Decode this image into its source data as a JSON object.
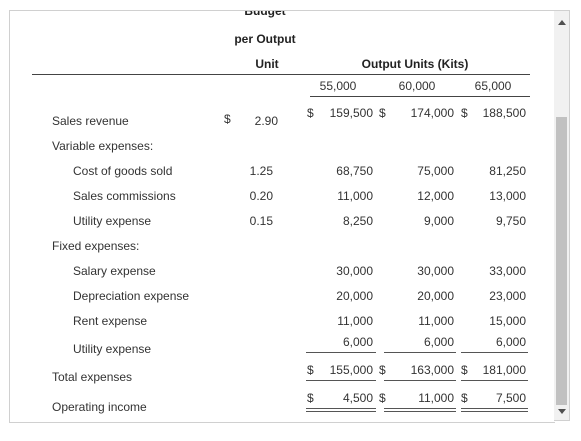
{
  "header": {
    "top_fragment": "Budget",
    "per_output": "per Output",
    "unit": "Unit",
    "output_units": "Output Units (Kits)",
    "units": [
      "55,000",
      "60,000",
      "65,000"
    ]
  },
  "rows": {
    "sales_revenue": {
      "label": "Sales revenue",
      "dollar_unit": "$",
      "unit": "2.90",
      "dollar1": "$",
      "v1": "159,500",
      "dollar2": "$",
      "v2": "174,000",
      "dollar3": "$",
      "v3": "188,500"
    },
    "variable_expenses": {
      "label": "Variable expenses:"
    },
    "cost_of_goods_sold": {
      "label": "Cost of goods sold",
      "unit": "1.25",
      "v1": "68,750",
      "v2": "75,000",
      "v3": "81,250"
    },
    "sales_commissions": {
      "label": "Sales commissions",
      "unit": "0.20",
      "v1": "11,000",
      "v2": "12,000",
      "v3": "13,000"
    },
    "utility_expense_var": {
      "label": "Utility expense",
      "unit": "0.15",
      "v1": "8,250",
      "v2": "9,000",
      "v3": "9,750"
    },
    "fixed_expenses": {
      "label": "Fixed expenses:"
    },
    "salary_expense": {
      "label": "Salary expense",
      "v1": "30,000",
      "v2": "30,000",
      "v3": "33,000"
    },
    "depreciation_expense": {
      "label": "Depreciation expense",
      "v1": "20,000",
      "v2": "20,000",
      "v3": "23,000"
    },
    "rent_expense": {
      "label": "Rent expense",
      "v1": "11,000",
      "v2": "11,000",
      "v3": "15,000"
    },
    "utility_expense_fixed": {
      "label": "Utility expense",
      "v1": "6,000",
      "v2": "6,000",
      "v3": "6,000"
    },
    "total_expenses": {
      "label": "Total expenses",
      "dollar1": "$",
      "v1": "155,000",
      "dollar2": "$",
      "v2": "163,000",
      "dollar3": "$",
      "v3": "181,000"
    },
    "operating_income": {
      "label": "Operating income",
      "dollar1": "$",
      "v1": "4,500",
      "dollar2": "$",
      "v2": "11,000",
      "dollar3": "$",
      "v3": "7,500"
    }
  },
  "scrollbar": {
    "up_icon": "triangle-up",
    "down_icon": "triangle-down"
  }
}
